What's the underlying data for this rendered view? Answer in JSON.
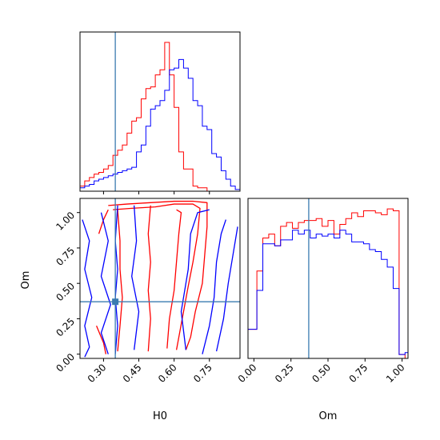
{
  "chart_data": {
    "type": "corner",
    "colors": {
      "series_a": "#ff0000",
      "series_b": "#0000ff",
      "truth": "#3a7bb0"
    },
    "truth": {
      "H0": 0.35,
      "Om": 0.37
    },
    "panels": [
      {
        "id": "H0-marginal",
        "type": "histogram",
        "xlim": [
          0.2,
          0.88
        ],
        "bin_edges": [
          0.2,
          0.22,
          0.24,
          0.26,
          0.28,
          0.3,
          0.32,
          0.34,
          0.36,
          0.38,
          0.4,
          0.42,
          0.44,
          0.46,
          0.48,
          0.5,
          0.52,
          0.54,
          0.56,
          0.58,
          0.6,
          0.62,
          0.64,
          0.66,
          0.68,
          0.7,
          0.72,
          0.74,
          0.76,
          0.78,
          0.8,
          0.82,
          0.84,
          0.86,
          0.88
        ],
        "series": [
          {
            "color": "red",
            "counts": [
              0.03,
              0.06,
              0.08,
              0.1,
              0.11,
              0.13,
              0.15,
              0.21,
              0.24,
              0.27,
              0.34,
              0.41,
              0.43,
              0.54,
              0.6,
              0.61,
              0.68,
              0.71,
              0.87,
              0.68,
              0.49,
              0.23,
              0.13,
              0.13,
              0.03,
              0.02,
              0.02,
              0,
              0,
              0,
              0,
              0,
              0,
              0
            ]
          },
          {
            "color": "blue",
            "counts": [
              0.02,
              0.03,
              0.04,
              0.06,
              0.07,
              0.08,
              0.09,
              0.1,
              0.11,
              0.12,
              0.13,
              0.14,
              0.23,
              0.27,
              0.38,
              0.48,
              0.5,
              0.53,
              0.59,
              0.71,
              0.72,
              0.77,
              0.72,
              0.66,
              0.53,
              0.5,
              0.38,
              0.36,
              0.22,
              0.2,
              0.12,
              0.07,
              0.03,
              0.01
            ]
          }
        ]
      },
      {
        "id": "Om-marginal",
        "type": "histogram",
        "xlim": [
          -0.04,
          1.04
        ],
        "bin_edges": [
          -0.04,
          0.02,
          0.06,
          0.1,
          0.14,
          0.18,
          0.22,
          0.26,
          0.3,
          0.34,
          0.38,
          0.42,
          0.46,
          0.5,
          0.54,
          0.58,
          0.62,
          0.66,
          0.7,
          0.74,
          0.78,
          0.82,
          0.86,
          0.9,
          0.94,
          0.98,
          1.02,
          1.04
        ],
        "series": [
          {
            "color": "red",
            "counts": [
              0.15,
              0.45,
              0.62,
              0.64,
              0.58,
              0.68,
              0.7,
              0.67,
              0.7,
              0.71,
              0.71,
              0.72,
              0.68,
              0.71,
              0.64,
              0.69,
              0.72,
              0.75,
              0.73,
              0.76,
              0.76,
              0.75,
              0.74,
              0.77,
              0.76,
              0.02,
              0.0
            ]
          },
          {
            "color": "blue",
            "counts": [
              0.15,
              0.35,
              0.59,
              0.59,
              0.58,
              0.61,
              0.61,
              0.66,
              0.64,
              0.66,
              0.62,
              0.64,
              0.63,
              0.64,
              0.62,
              0.66,
              0.64,
              0.6,
              0.6,
              0.59,
              0.56,
              0.55,
              0.51,
              0.47,
              0.36,
              0.02,
              0.03
            ]
          }
        ]
      },
      {
        "id": "H0-Om-contours",
        "type": "contour",
        "xlim": [
          0.2,
          0.88
        ],
        "ylim": [
          -0.03,
          1.1
        ],
        "series": [
          {
            "color": "red",
            "lines": [
              [
                [
                  0.32,
                  1.05
                ],
                [
                  0.4,
                  1.06
                ],
                [
                  0.5,
                  1.07
                ],
                [
                  0.6,
                  1.08
                ],
                [
                  0.68,
                  1.08
                ],
                [
                  0.74,
                  1.07
                ],
                [
                  0.74,
                  0.9
                ],
                [
                  0.73,
                  0.7
                ],
                [
                  0.72,
                  0.5
                ],
                [
                  0.69,
                  0.3
                ],
                [
                  0.67,
                  0.12
                ],
                [
                  0.65,
                  0.03
                ]
              ],
              [
                [
                  0.34,
                  1.02
                ],
                [
                  0.42,
                  1.03
                ],
                [
                  0.52,
                  1.04
                ],
                [
                  0.6,
                  1.06
                ],
                [
                  0.68,
                  1.06
                ],
                [
                  0.71,
                  1.03
                ],
                [
                  0.7,
                  0.85
                ],
                [
                  0.68,
                  0.65
                ],
                [
                  0.66,
                  0.48
                ],
                [
                  0.64,
                  0.3
                ],
                [
                  0.62,
                  0.12
                ],
                [
                  0.61,
                  0.03
                ]
              ],
              [
                [
                  0.57,
                  0.04
                ],
                [
                  0.58,
                  0.25
                ],
                [
                  0.6,
                  0.45
                ],
                [
                  0.61,
                  0.65
                ],
                [
                  0.62,
                  0.85
                ],
                [
                  0.63,
                  1.0
                ],
                [
                  0.61,
                  1.02
                ]
              ],
              [
                [
                  0.36,
                  1.02
                ],
                [
                  0.37,
                  0.8
                ],
                [
                  0.37,
                  0.6
                ],
                [
                  0.38,
                  0.4
                ],
                [
                  0.37,
                  0.2
                ],
                [
                  0.36,
                  0.02
                ]
              ],
              [
                [
                  0.49,
                  0.02
                ],
                [
                  0.5,
                  0.25
                ],
                [
                  0.49,
                  0.45
                ],
                [
                  0.5,
                  0.65
                ],
                [
                  0.49,
                  0.85
                ],
                [
                  0.5,
                  1.05
                ]
              ],
              [
                [
                  0.27,
                  0.2
                ],
                [
                  0.3,
                  0.08
                ],
                [
                  0.31,
                  0.0
                ]
              ],
              [
                [
                  0.28,
                  0.85
                ],
                [
                  0.3,
                  0.95
                ],
                [
                  0.32,
                  1.02
                ]
              ]
            ]
          },
          {
            "color": "blue",
            "lines": [
              [
                [
                  0.21,
                  0.95
                ],
                [
                  0.24,
                  0.8
                ],
                [
                  0.22,
                  0.6
                ],
                [
                  0.25,
                  0.4
                ],
                [
                  0.22,
                  0.2
                ],
                [
                  0.24,
                  0.05
                ],
                [
                  0.22,
                  -0.02
                ]
              ],
              [
                [
                  0.29,
                  1.0
                ],
                [
                  0.32,
                  0.8
                ],
                [
                  0.29,
                  0.55
                ],
                [
                  0.33,
                  0.35
                ],
                [
                  0.29,
                  0.15
                ],
                [
                  0.32,
                  0.0
                ]
              ],
              [
                [
                  0.36,
                  1.05
                ],
                [
                  0.35,
                  0.8
                ],
                [
                  0.36,
                  0.6
                ],
                [
                  0.35,
                  0.4
                ],
                [
                  0.36,
                  0.2
                ],
                [
                  0.35,
                  0.0
                ]
              ],
              [
                [
                  0.72,
                  0.0
                ],
                [
                  0.75,
                  0.2
                ],
                [
                  0.77,
                  0.4
                ],
                [
                  0.78,
                  0.65
                ],
                [
                  0.8,
                  0.85
                ],
                [
                  0.82,
                  0.95
                ]
              ],
              [
                [
                  0.78,
                  0.02
                ],
                [
                  0.81,
                  0.25
                ],
                [
                  0.83,
                  0.5
                ],
                [
                  0.85,
                  0.7
                ],
                [
                  0.87,
                  0.9
                ]
              ],
              [
                [
                  0.65,
                  0.03
                ],
                [
                  0.63,
                  0.3
                ],
                [
                  0.66,
                  0.6
                ],
                [
                  0.67,
                  0.85
                ],
                [
                  0.7,
                  1.0
                ],
                [
                  0.75,
                  1.02
                ]
              ],
              [
                [
                  0.43,
                  0.03
                ],
                [
                  0.45,
                  0.3
                ],
                [
                  0.42,
                  0.55
                ],
                [
                  0.44,
                  0.8
                ],
                [
                  0.43,
                  1.05
                ]
              ]
            ]
          }
        ]
      }
    ],
    "x_ticks_H0": [
      "0.30",
      "0.45",
      "0.60",
      "0.75"
    ],
    "x_ticks_H0_values": [
      0.3,
      0.45,
      0.6,
      0.75
    ],
    "y_ticks_Om": [
      "0.00",
      "0.25",
      "0.50",
      "0.75",
      "1.00"
    ],
    "y_ticks_Om_values": [
      0.0,
      0.25,
      0.5,
      0.75,
      1.0
    ],
    "x_ticks_Om": [
      "0.00",
      "0.25",
      "0.50",
      "0.75",
      "1.00"
    ],
    "x_ticks_Om_values": [
      0.0,
      0.25,
      0.5,
      0.75,
      1.0
    ],
    "xlabel_left": "H0",
    "xlabel_right": "Om",
    "ylabel_left": "Om"
  }
}
